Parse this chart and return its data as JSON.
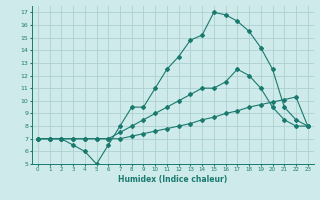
{
  "xlabel": "Humidex (Indice chaleur)",
  "ylabel": "",
  "bg_color": "#ceeaea",
  "line_color": "#1a7a6e",
  "grid_color": "#aed0d0",
  "xlim": [
    -0.5,
    23.5
  ],
  "ylim": [
    5,
    17.5
  ],
  "xticks": [
    0,
    1,
    2,
    3,
    4,
    5,
    6,
    7,
    8,
    9,
    10,
    11,
    12,
    13,
    14,
    15,
    16,
    17,
    18,
    19,
    20,
    21,
    22,
    23
  ],
  "yticks": [
    5,
    6,
    7,
    8,
    9,
    10,
    11,
    12,
    13,
    14,
    15,
    16,
    17
  ],
  "curve1_x": [
    0,
    1,
    2,
    3,
    4,
    5,
    6,
    7,
    8,
    9,
    10,
    11,
    12,
    13,
    14,
    15,
    16,
    17,
    18,
    19,
    20,
    21,
    22,
    23
  ],
  "curve1_y": [
    7,
    7,
    7,
    6.5,
    6,
    5,
    6.5,
    8,
    9.5,
    9.5,
    11,
    12.5,
    13.5,
    14.8,
    15.2,
    17,
    16.8,
    16.3,
    15.5,
    14.2,
    12.5,
    9.5,
    8.5,
    8
  ],
  "curve2_x": [
    0,
    1,
    2,
    3,
    4,
    5,
    6,
    7,
    8,
    9,
    10,
    11,
    12,
    13,
    14,
    15,
    16,
    17,
    18,
    19,
    20,
    21,
    22,
    23
  ],
  "curve2_y": [
    7,
    7,
    7,
    7,
    7,
    7,
    7,
    7.5,
    8,
    8.5,
    9,
    9.5,
    10,
    10.5,
    11,
    11,
    11.5,
    12.5,
    12,
    11,
    9.5,
    8.5,
    8,
    8
  ],
  "curve3_x": [
    0,
    1,
    2,
    3,
    4,
    5,
    6,
    7,
    8,
    9,
    10,
    11,
    12,
    13,
    14,
    15,
    16,
    17,
    18,
    19,
    20,
    21,
    22,
    23
  ],
  "curve3_y": [
    7,
    7,
    7,
    7,
    7,
    7,
    7,
    7,
    7.2,
    7.4,
    7.6,
    7.8,
    8,
    8.2,
    8.5,
    8.7,
    9,
    9.2,
    9.5,
    9.7,
    9.9,
    10.1,
    10.3,
    8.0
  ]
}
